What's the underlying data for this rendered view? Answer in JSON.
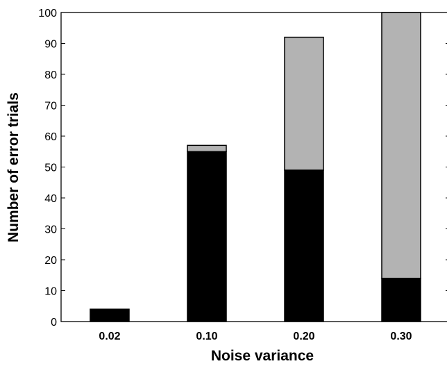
{
  "chart_data": {
    "type": "bar",
    "stacked": true,
    "title": "",
    "xlabel": "Noise variance",
    "ylabel": "Number of error trials",
    "categories": [
      "0.02",
      "0.10",
      "0.20",
      "0.30"
    ],
    "ylim": [
      0,
      100
    ],
    "yticks": [
      0,
      10,
      20,
      30,
      40,
      50,
      60,
      70,
      80,
      90,
      100
    ],
    "grid": false,
    "legend": "none",
    "series": [
      {
        "color": "#000000",
        "values": [
          4,
          55,
          49,
          14
        ]
      },
      {
        "color": "#b3b3b3",
        "values": [
          0,
          2,
          43,
          86
        ]
      }
    ]
  }
}
